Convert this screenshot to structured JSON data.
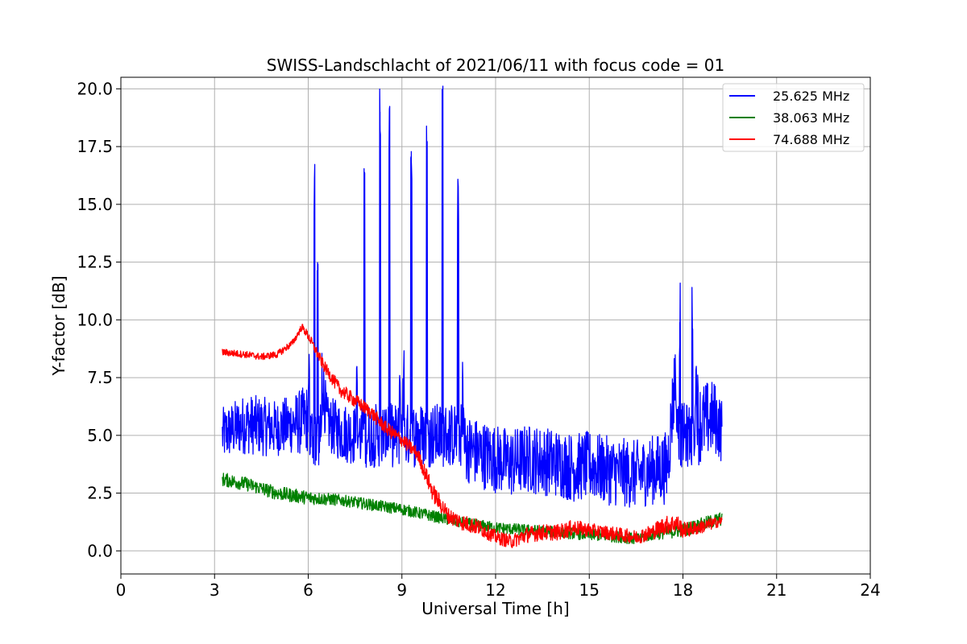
{
  "chart_data": {
    "type": "line",
    "title": "SWISS-Landschlacht of 2021/06/11 with focus code = 01",
    "xlabel": "Universal Time [h]",
    "ylabel": "Y-factor [dB]",
    "xlim": [
      0,
      24
    ],
    "ylim": [
      -1.0,
      20.5
    ],
    "x_ticks": [
      0,
      3,
      6,
      9,
      12,
      15,
      18,
      21,
      24
    ],
    "x_tick_labels": [
      "0",
      "3",
      "6",
      "9",
      "12",
      "15",
      "18",
      "21",
      "24"
    ],
    "y_ticks": [
      0.0,
      2.5,
      5.0,
      7.5,
      10.0,
      12.5,
      15.0,
      17.5,
      20.0
    ],
    "y_tick_labels": [
      "0.0",
      "2.5",
      "5.0",
      "7.5",
      "10.0",
      "12.5",
      "15.0",
      "17.5",
      "20.0"
    ],
    "grid": true,
    "legend_position": "top-right",
    "series": [
      {
        "name": "25.625 MHz",
        "color": "#0000ff",
        "x": [
          3.25,
          3.5,
          4.0,
          4.5,
          5.0,
          5.5,
          5.85,
          6.0,
          6.2,
          6.3,
          6.45,
          6.6,
          7.0,
          7.5,
          7.8,
          8.3,
          8.6,
          9.0,
          9.3,
          9.8,
          10.3,
          10.8,
          11.0,
          11.5,
          12.0,
          12.5,
          13.0,
          13.5,
          14.0,
          14.5,
          15.0,
          15.5,
          16.0,
          16.5,
          17.0,
          17.5,
          17.9,
          18.3,
          18.5,
          19.0,
          19.25
        ],
        "y": [
          5.0,
          5.2,
          5.5,
          5.4,
          5.3,
          5.5,
          5.6,
          5.8,
          15.8,
          12.5,
          7.5,
          5.5,
          5.2,
          5.0,
          16.4,
          19.0,
          18.6,
          5.0,
          17.3,
          17.5,
          19.6,
          14.8,
          4.5,
          4.2,
          4.0,
          3.8,
          4.0,
          3.9,
          3.8,
          3.6,
          3.7,
          3.5,
          3.4,
          3.3,
          3.5,
          3.6,
          9.9,
          10.1,
          5.5,
          5.8,
          5.2
        ],
        "band": [
          1.2,
          1.2,
          1.3,
          1.3,
          1.2,
          1.3,
          1.5,
          1.5,
          1.5,
          2.0,
          1.5,
          1.2,
          1.3,
          1.3,
          1.5,
          1.5,
          1.5,
          1.3,
          1.3,
          1.3,
          1.3,
          1.3,
          1.5,
          1.5,
          1.5,
          1.5,
          1.5,
          1.5,
          1.5,
          1.5,
          1.5,
          1.5,
          1.5,
          1.5,
          1.5,
          1.6,
          1.8,
          1.8,
          1.8,
          1.6,
          1.4
        ]
      },
      {
        "name": "38.063 MHz",
        "color": "#008000",
        "x": [
          3.25,
          4.0,
          5.0,
          6.0,
          7.0,
          8.0,
          9.0,
          10.0,
          11.0,
          12.0,
          13.0,
          14.0,
          15.0,
          16.0,
          16.5,
          17.0,
          18.0,
          19.0,
          19.25
        ],
        "y": [
          3.1,
          2.9,
          2.5,
          2.3,
          2.2,
          2.0,
          1.8,
          1.5,
          1.2,
          1.0,
          0.9,
          0.8,
          0.7,
          0.6,
          0.5,
          0.7,
          0.9,
          1.3,
          1.4
        ],
        "band": [
          0.3,
          0.3,
          0.3,
          0.3,
          0.25,
          0.25,
          0.25,
          0.25,
          0.25,
          0.25,
          0.25,
          0.25,
          0.25,
          0.25,
          0.25,
          0.25,
          0.3,
          0.3,
          0.3
        ]
      },
      {
        "name": "74.688 MHz",
        "color": "#ff0000",
        "x": [
          3.25,
          4.0,
          4.5,
          5.0,
          5.5,
          5.8,
          6.0,
          6.5,
          7.0,
          7.5,
          8.0,
          8.5,
          9.0,
          9.5,
          10.0,
          10.5,
          11.0,
          11.5,
          12.0,
          12.5,
          13.0,
          13.5,
          14.0,
          14.5,
          15.0,
          15.5,
          16.0,
          16.5,
          17.0,
          17.4,
          17.8,
          18.0,
          18.5,
          19.0,
          19.25
        ],
        "y": [
          8.6,
          8.5,
          8.4,
          8.5,
          9.0,
          9.7,
          9.3,
          8.0,
          7.0,
          6.5,
          6.0,
          5.3,
          4.8,
          4.2,
          2.5,
          1.5,
          1.2,
          1.0,
          0.6,
          0.4,
          0.7,
          0.8,
          0.8,
          1.0,
          0.9,
          0.8,
          0.7,
          0.6,
          0.8,
          1.1,
          1.2,
          0.9,
          1.0,
          1.2,
          1.3
        ],
        "band": [
          0.15,
          0.15,
          0.15,
          0.15,
          0.15,
          0.15,
          0.2,
          0.25,
          0.3,
          0.3,
          0.3,
          0.3,
          0.3,
          0.3,
          0.4,
          0.35,
          0.35,
          0.35,
          0.3,
          0.3,
          0.35,
          0.35,
          0.35,
          0.35,
          0.3,
          0.3,
          0.3,
          0.3,
          0.35,
          0.4,
          0.4,
          0.35,
          0.3,
          0.25,
          0.2
        ]
      }
    ]
  }
}
